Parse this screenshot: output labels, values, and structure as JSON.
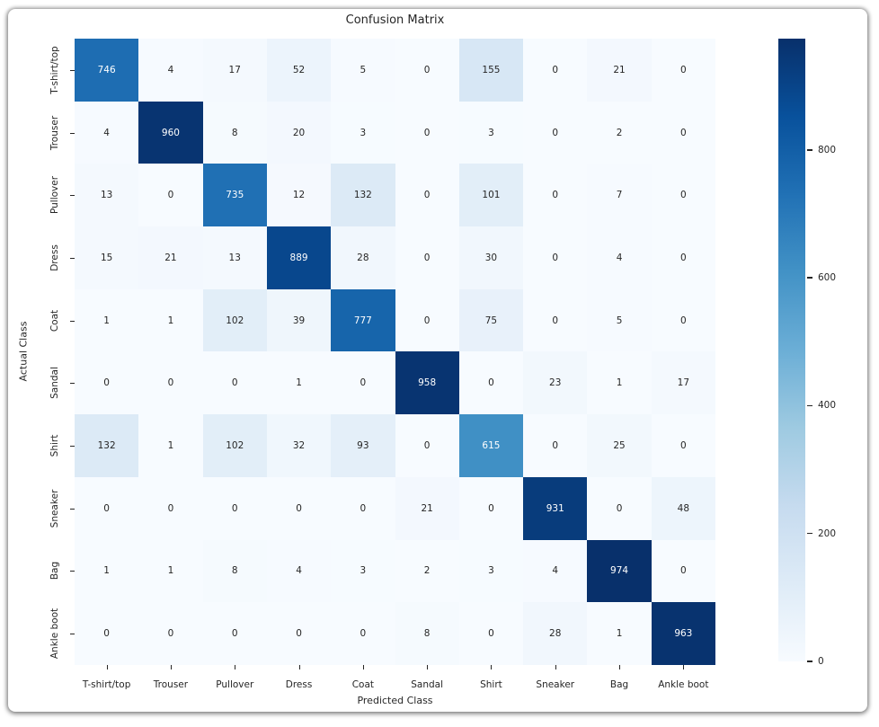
{
  "figure": {
    "title": "Confusion Matrix",
    "xlabel": "Predicted Class",
    "ylabel": "Actual Class"
  },
  "chart_data": {
    "type": "heatmap",
    "title": "Confusion Matrix",
    "xlabel": "Predicted Class",
    "ylabel": "Actual Class",
    "categories": [
      "T-shirt/top",
      "Trouser",
      "Pullover",
      "Dress",
      "Coat",
      "Sandal",
      "Shirt",
      "Sneaker",
      "Bag",
      "Ankle boot"
    ],
    "matrix": [
      [
        746,
        4,
        17,
        52,
        5,
        0,
        155,
        0,
        21,
        0
      ],
      [
        4,
        960,
        8,
        20,
        3,
        0,
        3,
        0,
        2,
        0
      ],
      [
        13,
        0,
        735,
        12,
        132,
        0,
        101,
        0,
        7,
        0
      ],
      [
        15,
        21,
        13,
        889,
        28,
        0,
        30,
        0,
        4,
        0
      ],
      [
        1,
        1,
        102,
        39,
        777,
        0,
        75,
        0,
        5,
        0
      ],
      [
        0,
        0,
        0,
        1,
        0,
        958,
        0,
        23,
        1,
        17
      ],
      [
        132,
        1,
        102,
        32,
        93,
        0,
        615,
        0,
        25,
        0
      ],
      [
        0,
        0,
        0,
        0,
        0,
        21,
        0,
        931,
        0,
        48
      ],
      [
        1,
        1,
        8,
        4,
        3,
        2,
        3,
        4,
        974,
        0
      ],
      [
        0,
        0,
        0,
        0,
        0,
        8,
        0,
        28,
        1,
        963
      ]
    ],
    "vmin": 0,
    "vmax": 974,
    "colormap": "Blues",
    "colormap_hex": [
      "#f7fbff",
      "#deebf7",
      "#c6dbef",
      "#9ecae1",
      "#6baed6",
      "#4292c6",
      "#2171b5",
      "#08519c",
      "#08306b"
    ],
    "colorbar_ticks": [
      0,
      200,
      400,
      600,
      800
    ],
    "annotation_text_colors": {
      "on_light": "#262626",
      "on_dark": "#ffffff"
    },
    "legend_position": "right-colorbar",
    "grid": false
  }
}
